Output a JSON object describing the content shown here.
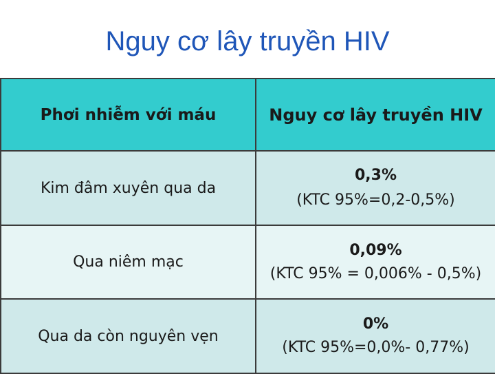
{
  "title": "Nguy cơ lây truyền HIV",
  "table": {
    "header": {
      "exposure": "Phơi nhiễm với máu",
      "risk": "Nguy cơ lây truyền HIV"
    },
    "rows": [
      {
        "exposure": "Kim đâm xuyên qua da",
        "risk_value": "0,3%",
        "risk_ci": "(KTC 95%=0,2-0,5%)"
      },
      {
        "exposure": "Qua niêm mạc",
        "risk_value": "0,09%",
        "risk_ci": "(KTC 95% = 0,006% - 0,5%)"
      },
      {
        "exposure": "Qua da còn nguyên vẹn",
        "risk_value": "0%",
        "risk_ci": "(KTC 95%=0,0%- 0,77%)"
      }
    ]
  }
}
